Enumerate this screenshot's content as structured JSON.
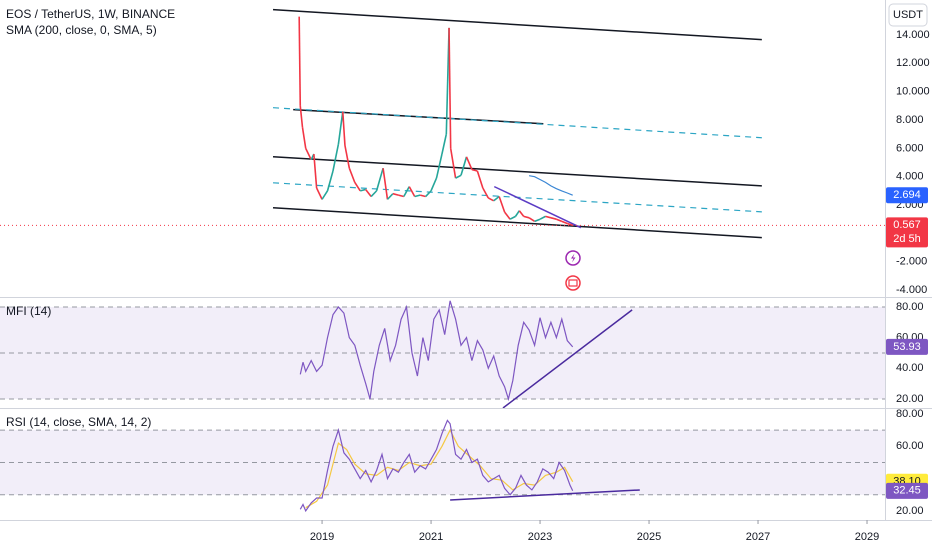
{
  "chart_data": [
    {
      "type": "line",
      "title": "EOS / TetherUS, 1W, BINANCE",
      "subtitle": "SMA (200, close, 0, SMA, 5)",
      "unit": "USDT",
      "xlim": [
        2013.09,
        2029.33
      ],
      "ylim": [
        -4.49,
        16.47
      ],
      "yticks": [
        {
          "value": -4,
          "label": "-4.000"
        },
        {
          "value": -2,
          "label": "-2.000"
        },
        {
          "value": 2,
          "label": "2.000"
        },
        {
          "value": 4,
          "label": "4.000"
        },
        {
          "value": 6,
          "label": "6.000"
        },
        {
          "value": 8,
          "label": "8.000"
        },
        {
          "value": 10,
          "label": "10.000"
        },
        {
          "value": 12,
          "label": "12.000"
        },
        {
          "value": 14,
          "label": "14.000"
        }
      ],
      "series": [
        {
          "color": "#f23645",
          "up_color": "#26a69a",
          "down_color": "#f23645",
          "last_line": true,
          "last_label": "0.567",
          "countdown": "2d 5h",
          "x": [
            2018.58,
            2018.6,
            2018.64,
            2018.7,
            2018.8,
            2018.85,
            2018.9,
            2019.0,
            2019.1,
            2019.2,
            2019.3,
            2019.38,
            2019.42,
            2019.5,
            2019.6,
            2019.7,
            2019.8,
            2019.9,
            2020.0,
            2020.12,
            2020.2,
            2020.3,
            2020.4,
            2020.5,
            2020.6,
            2020.7,
            2020.8,
            2020.9,
            2021.0,
            2021.1,
            2021.2,
            2021.28,
            2021.33,
            2021.36,
            2021.45,
            2021.55,
            2021.65,
            2021.75,
            2021.85,
            2021.95,
            2022.05,
            2022.15,
            2022.25,
            2022.35,
            2022.45,
            2022.55,
            2022.62,
            2022.7,
            2022.8,
            2022.9,
            2023.0,
            2023.1,
            2023.2,
            2023.3,
            2023.4,
            2023.5,
            2023.6
          ],
          "values": [
            15.3,
            9,
            7.5,
            6,
            5.2,
            5.6,
            3.2,
            2.4,
            3.0,
            4.4,
            6.3,
            8.6,
            6.2,
            4.6,
            3.6,
            3.0,
            3.1,
            2.6,
            3.0,
            4.6,
            2.4,
            2.8,
            2.7,
            2.6,
            3.3,
            2.6,
            2.7,
            2.6,
            3.0,
            3.9,
            5.6,
            7.0,
            14.5,
            6.0,
            3.9,
            4.1,
            5.4,
            4.5,
            4.4,
            3.2,
            2.5,
            2.3,
            2.6,
            1.5,
            1.0,
            1.2,
            1.6,
            1.2,
            1.1,
            0.85,
            1.0,
            1.2,
            1.1,
            1.0,
            0.85,
            0.7,
            0.567
          ]
        },
        {
          "color": "#3a86d4",
          "label_color": "#2962ff",
          "last_label": "2.694",
          "x": [
            2022.8,
            2022.9,
            2023.0,
            2023.1,
            2023.2,
            2023.3,
            2023.4,
            2023.5,
            2023.6
          ],
          "values": [
            4.07,
            4.0,
            3.8,
            3.6,
            3.35,
            3.15,
            3.0,
            2.85,
            2.694
          ]
        }
      ],
      "trend_lines": [
        {
          "x": [
            2018.1,
            2027.07
          ],
          "y": [
            15.79,
            13.67
          ],
          "color": "#131722",
          "dashed": false
        },
        {
          "x": [
            2018.1,
            2027.07
          ],
          "y": [
            5.41,
            3.35
          ],
          "color": "#131722",
          "dashed": false
        },
        {
          "x": [
            2018.1,
            2027.07
          ],
          "y": [
            1.81,
            -0.3
          ],
          "color": "#131722",
          "dashed": false
        },
        {
          "x": [
            2018.47,
            2023.06
          ],
          "y": [
            8.73,
            7.74
          ],
          "color": "#131722",
          "dashed": false
        },
        {
          "x": [
            2018.1,
            2027.07
          ],
          "y": [
            8.87,
            6.75
          ],
          "color": "#2ba5c4",
          "dashed": true
        },
        {
          "x": [
            2018.1,
            2027.07
          ],
          "y": [
            3.57,
            1.52
          ],
          "color": "#2ba5c4",
          "dashed": true
        },
        {
          "x": [
            2022.16,
            2023.75
          ],
          "y": [
            3.3,
            0.4
          ],
          "color": "#5b3cc4",
          "dashed": false
        }
      ]
    },
    {
      "type": "line",
      "title": "MFI (14)",
      "xlim": [
        2013.09,
        2029.33
      ],
      "ylim": [
        14.1,
        86.5
      ],
      "yticks": [
        {
          "value": 20,
          "label": "20.00"
        },
        {
          "value": 40,
          "label": "40.00"
        },
        {
          "value": 60,
          "label": "60.00"
        },
        {
          "value": 80,
          "label": "80.00"
        }
      ],
      "bands": [
        80,
        50,
        20
      ],
      "band_fill": "rgba(126,87,194,0.1)",
      "series": [
        {
          "color": "#7e57c2",
          "last_label": "53.93",
          "x": [
            2018.6,
            2018.65,
            2018.7,
            2018.8,
            2018.9,
            2019.0,
            2019.1,
            2019.2,
            2019.3,
            2019.4,
            2019.5,
            2019.6,
            2019.7,
            2019.8,
            2019.88,
            2019.95,
            2020.05,
            2020.15,
            2020.25,
            2020.35,
            2020.45,
            2020.55,
            2020.65,
            2020.75,
            2020.85,
            2020.95,
            2021.05,
            2021.15,
            2021.25,
            2021.35,
            2021.45,
            2021.55,
            2021.65,
            2021.75,
            2021.85,
            2021.95,
            2022.05,
            2022.15,
            2022.25,
            2022.35,
            2022.42,
            2022.5,
            2022.6,
            2022.7,
            2022.8,
            2022.9,
            2023.0,
            2023.1,
            2023.2,
            2023.3,
            2023.4,
            2023.5,
            2023.6
          ],
          "values": [
            36,
            44,
            38,
            45,
            38,
            42,
            60,
            75,
            80,
            76,
            60,
            55,
            42,
            30,
            20,
            38,
            55,
            66,
            45,
            55,
            72,
            80,
            50,
            35,
            60,
            45,
            72,
            78,
            62,
            84,
            72,
            55,
            60,
            45,
            58,
            52,
            40,
            48,
            35,
            28,
            20,
            32,
            55,
            70,
            65,
            55,
            73,
            60,
            70,
            60,
            72,
            58,
            53.93
          ]
        }
      ],
      "trend_lines": [
        {
          "x": [
            2022.32,
            2024.69
          ],
          "y": [
            14.1,
            78.1
          ],
          "color": "#4a2a9e",
          "dashed": false
        }
      ]
    },
    {
      "type": "line",
      "title": "RSI (14, close, SMA, 14, 2)",
      "xlim": [
        2013.09,
        2029.33
      ],
      "ylim": [
        14.4,
        83.7
      ],
      "xticks": [
        2019,
        2021,
        2023,
        2025,
        2027,
        2029
      ],
      "yticks": [
        {
          "value": 20,
          "label": "20.00"
        },
        {
          "value": 60,
          "label": "60.00"
        },
        {
          "value": 80,
          "label": "80.00"
        }
      ],
      "bands": [
        70,
        50,
        30
      ],
      "band_fill": "rgba(126,87,194,0.1)",
      "series": [
        {
          "color": "#f5c842",
          "label_color": "#ffeb3b",
          "label_text_color": "#131722",
          "last_label": "38.10",
          "x": [
            2018.7,
            2018.9,
            2019.1,
            2019.3,
            2019.45,
            2019.6,
            2019.8,
            2020.0,
            2020.2,
            2020.4,
            2020.6,
            2020.8,
            2021.0,
            2021.2,
            2021.35,
            2021.5,
            2021.7,
            2021.9,
            2022.1,
            2022.3,
            2022.5,
            2022.7,
            2022.9,
            2023.1,
            2023.3,
            2023.45,
            2023.6
          ],
          "values": [
            22,
            26,
            36,
            62,
            58,
            49,
            43,
            42,
            47,
            45,
            50,
            48,
            49,
            60,
            70,
            60,
            54,
            48,
            40,
            39,
            33,
            37,
            36,
            42,
            44,
            47,
            38.1
          ]
        },
        {
          "color": "#7e57c2",
          "last_label": "32.45",
          "x": [
            2018.6,
            2018.65,
            2018.7,
            2018.8,
            2018.9,
            2019.0,
            2019.1,
            2019.2,
            2019.3,
            2019.4,
            2019.5,
            2019.6,
            2019.7,
            2019.8,
            2019.9,
            2020.0,
            2020.1,
            2020.2,
            2020.3,
            2020.4,
            2020.5,
            2020.6,
            2020.7,
            2020.8,
            2020.9,
            2021.0,
            2021.1,
            2021.2,
            2021.3,
            2021.35,
            2021.45,
            2021.55,
            2021.65,
            2021.75,
            2021.85,
            2021.95,
            2022.05,
            2022.15,
            2022.25,
            2022.35,
            2022.45,
            2022.55,
            2022.65,
            2022.75,
            2022.85,
            2022.95,
            2023.05,
            2023.15,
            2023.25,
            2023.35,
            2023.45,
            2023.55,
            2023.6
          ],
          "values": [
            21,
            24,
            20,
            25,
            28,
            28,
            45,
            60,
            70,
            56,
            52,
            46,
            40,
            45,
            38,
            45,
            55,
            40,
            46,
            44,
            50,
            55,
            44,
            48,
            46,
            52,
            58,
            68,
            76,
            74,
            55,
            52,
            58,
            50,
            52,
            42,
            38,
            40,
            42,
            34,
            30,
            34,
            42,
            36,
            33,
            38,
            46,
            44,
            40,
            50,
            45,
            36,
            32.45
          ]
        }
      ],
      "trend_lines": [
        {
          "x": [
            2021.35,
            2024.83
          ],
          "y": [
            26.8,
            33.0
          ],
          "color": "#4a2a9e",
          "dashed": false
        }
      ]
    }
  ]
}
